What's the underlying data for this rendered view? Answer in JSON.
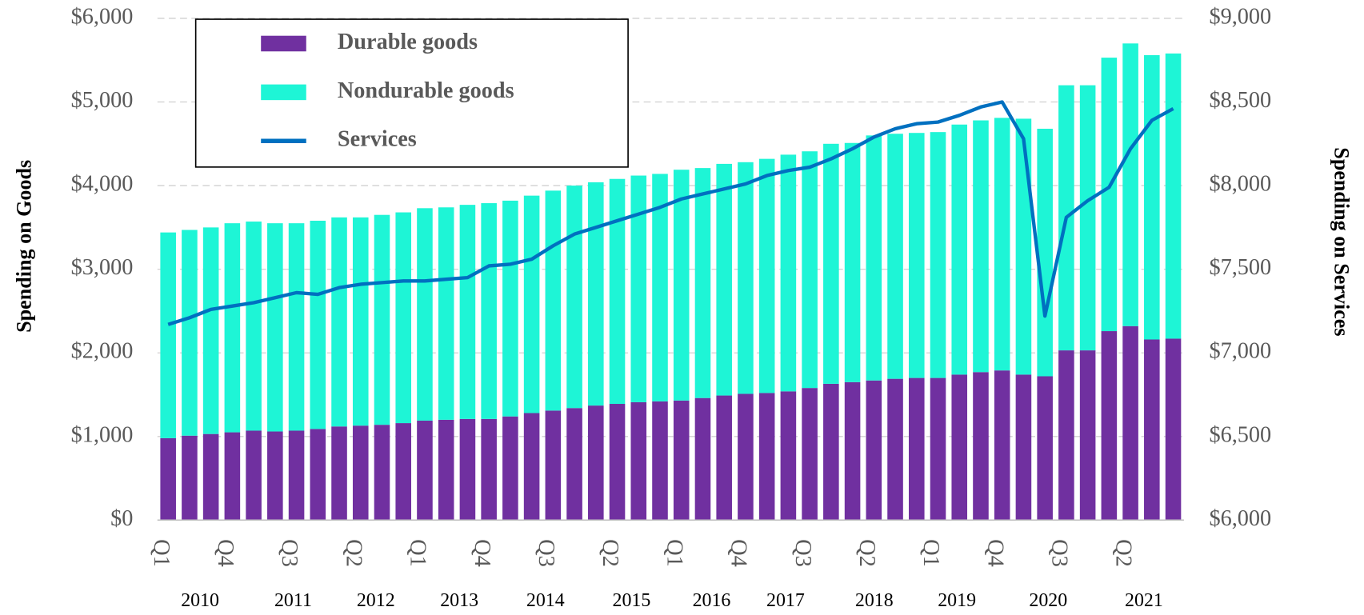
{
  "chart_data": {
    "type": "bar",
    "y_label": "Spending on Goods",
    "y2_label": "Spending on Services",
    "categories": [
      "Q1",
      null,
      null,
      "Q4",
      null,
      null,
      "Q3",
      null,
      null,
      "Q2",
      null,
      null,
      "Q1",
      null,
      null,
      "Q4",
      null,
      null,
      "Q3",
      null,
      null,
      "Q2",
      null,
      null,
      "Q1",
      null,
      null,
      "Q4",
      null,
      null,
      "Q3",
      null,
      null,
      "Q2",
      null,
      null,
      "Q1",
      null,
      null,
      "Q4",
      null,
      null,
      "Q3",
      null,
      null,
      "Q2",
      null,
      null
    ],
    "year_labels": [
      "2010",
      "2011",
      "2012",
      "2013",
      "2014",
      "2015",
      "2016",
      "2017",
      "2018",
      "2019",
      "2020",
      "2021"
    ],
    "series": [
      {
        "name": "Durable goods",
        "type": "bar",
        "color": "#7030a0",
        "values": [
          980,
          1010,
          1030,
          1050,
          1070,
          1060,
          1070,
          1090,
          1120,
          1130,
          1140,
          1160,
          1190,
          1200,
          1210,
          1210,
          1240,
          1280,
          1310,
          1340,
          1370,
          1390,
          1410,
          1420,
          1430,
          1460,
          1490,
          1510,
          1520,
          1540,
          1580,
          1630,
          1650,
          1670,
          1690,
          1700,
          1700,
          1740,
          1770,
          1790,
          1740,
          1720,
          2030,
          2030,
          2260,
          2320,
          2160,
          2170
        ]
      },
      {
        "name": "Nondurable goods",
        "type": "bar",
        "color": "#1ef5d6",
        "values": [
          2460,
          2460,
          2470,
          2500,
          2500,
          2490,
          2480,
          2490,
          2500,
          2490,
          2510,
          2520,
          2540,
          2540,
          2560,
          2580,
          2580,
          2600,
          2630,
          2660,
          2670,
          2690,
          2710,
          2720,
          2760,
          2750,
          2770,
          2770,
          2800,
          2830,
          2830,
          2870,
          2860,
          2930,
          2930,
          2930,
          2940,
          2990,
          3010,
          3020,
          3060,
          2960,
          3170,
          3170,
          3270,
          3380,
          3400,
          3410
        ]
      },
      {
        "name": "Services",
        "type": "line",
        "axis": "y2",
        "color": "#0070c0",
        "values": [
          7170,
          7210,
          7260,
          7280,
          7300,
          7330,
          7360,
          7350,
          7390,
          7410,
          7420,
          7430,
          7430,
          7440,
          7450,
          7520,
          7530,
          7560,
          7640,
          7710,
          7750,
          7790,
          7830,
          7870,
          7920,
          7950,
          7980,
          8010,
          8060,
          8090,
          8110,
          8160,
          8220,
          8290,
          8340,
          8370,
          8380,
          8420,
          8470,
          8500,
          8280,
          7220,
          7810,
          7910,
          7990,
          8220,
          8390,
          8460
        ]
      }
    ],
    "stacked": true,
    "ylim": [
      0,
      6000
    ],
    "yticks": [
      {
        "value": 0,
        "label": "$0"
      },
      {
        "value": 1000,
        "label": "$1,000"
      },
      {
        "value": 2000,
        "label": "$2,000"
      },
      {
        "value": 3000,
        "label": "$3,000"
      },
      {
        "value": 4000,
        "label": "$4,000"
      },
      {
        "value": 5000,
        "label": "$5,000"
      },
      {
        "value": 6000,
        "label": "$6,000"
      }
    ],
    "y2lim": [
      6000,
      9000
    ],
    "y2ticks": [
      {
        "value": 6000,
        "label": "$6,000"
      },
      {
        "value": 6500,
        "label": "$6,500"
      },
      {
        "value": 7000,
        "label": "$7,000"
      },
      {
        "value": 7500,
        "label": "$7,500"
      },
      {
        "value": 8000,
        "label": "$8,000"
      },
      {
        "value": 8500,
        "label": "$8,500"
      },
      {
        "value": 9000,
        "label": "$9,000"
      }
    ],
    "grid": true,
    "legend": "upper left"
  }
}
